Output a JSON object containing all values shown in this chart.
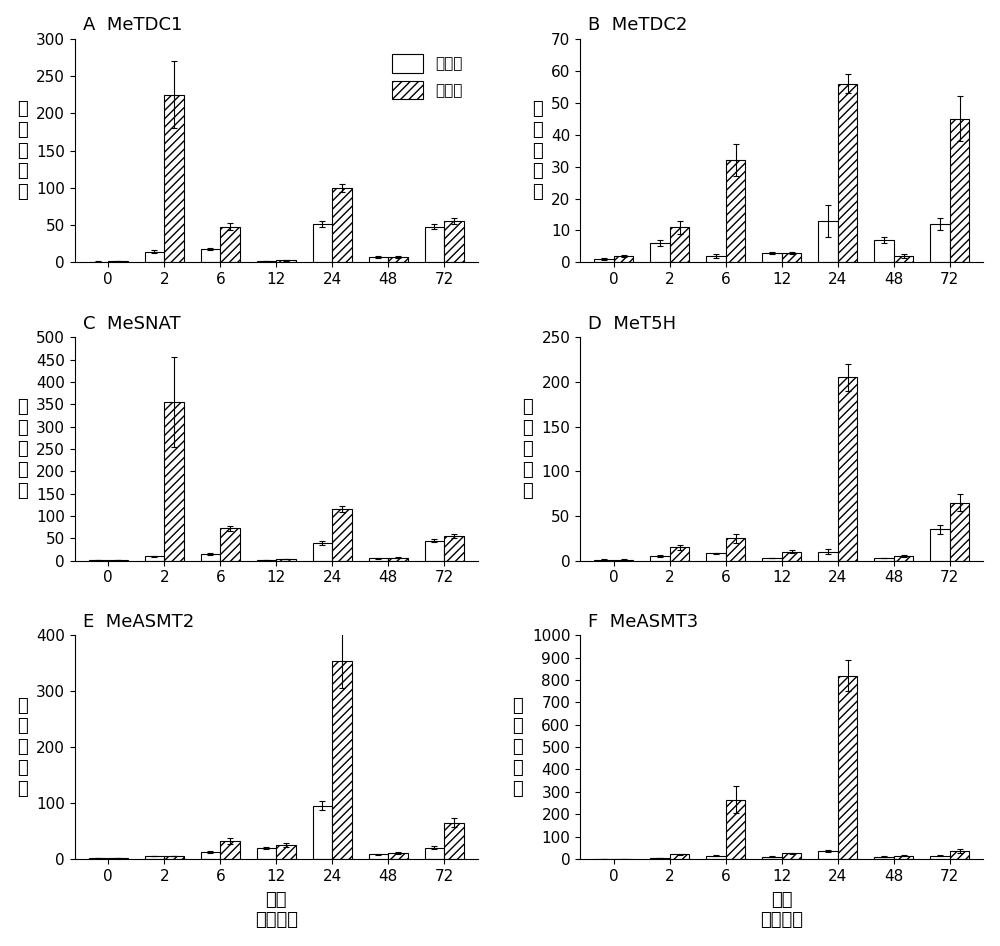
{
  "panels": [
    {
      "label": "A",
      "title": "MeTDC1",
      "ylim": [
        0,
        300
      ],
      "yticks": [
        0,
        50,
        100,
        150,
        200,
        250,
        300
      ],
      "ctrl": [
        1,
        14,
        18,
        2,
        52,
        7,
        48
      ],
      "treat": [
        2,
        225,
        48,
        3,
        100,
        7,
        55
      ],
      "ctrl_err": [
        0.5,
        2,
        2,
        0.5,
        4,
        1,
        3
      ],
      "treat_err": [
        0.5,
        45,
        5,
        0.5,
        5,
        1,
        4
      ]
    },
    {
      "label": "B",
      "title": "MeTDC2",
      "ylim": [
        0,
        70
      ],
      "yticks": [
        0,
        10,
        20,
        30,
        40,
        50,
        60,
        70
      ],
      "ctrl": [
        1,
        6,
        2,
        3,
        13,
        7,
        12
      ],
      "treat": [
        2,
        11,
        32,
        3,
        56,
        2,
        45
      ],
      "ctrl_err": [
        0.3,
        1,
        0.5,
        0.3,
        5,
        1,
        2
      ],
      "treat_err": [
        0.3,
        2,
        5,
        0.3,
        3,
        0.5,
        7
      ]
    },
    {
      "label": "C",
      "title": "MeSNAT",
      "ylim": [
        0,
        500
      ],
      "yticks": [
        0,
        50,
        100,
        150,
        200,
        250,
        300,
        350,
        400,
        450,
        500
      ],
      "ctrl": [
        1,
        10,
        15,
        2,
        40,
        5,
        45
      ],
      "treat": [
        1,
        355,
        72,
        3,
        115,
        7,
        55
      ],
      "ctrl_err": [
        0.3,
        1,
        2,
        0.3,
        5,
        1,
        3
      ],
      "treat_err": [
        0.3,
        100,
        5,
        0.3,
        7,
        1,
        4
      ]
    },
    {
      "label": "D",
      "title": "MeT5H",
      "ylim": [
        0,
        250
      ],
      "yticks": [
        0,
        50,
        100,
        150,
        200,
        250
      ],
      "ctrl": [
        1,
        5,
        8,
        3,
        10,
        3,
        35
      ],
      "treat": [
        1,
        15,
        25,
        10,
        205,
        5,
        65
      ],
      "ctrl_err": [
        0.3,
        1,
        1,
        0.5,
        3,
        0.5,
        5
      ],
      "treat_err": [
        0.3,
        3,
        5,
        2,
        15,
        1,
        10
      ]
    },
    {
      "label": "E",
      "title": "MeASMT2",
      "ylim": [
        0,
        400
      ],
      "yticks": [
        0,
        100,
        200,
        300,
        400
      ],
      "ctrl": [
        1,
        5,
        12,
        20,
        95,
        8,
        20
      ],
      "treat": [
        1,
        5,
        32,
        25,
        355,
        10,
        65
      ],
      "ctrl_err": [
        0.3,
        0.5,
        2,
        2,
        8,
        1,
        3
      ],
      "treat_err": [
        0.3,
        0.5,
        5,
        3,
        50,
        2,
        8
      ]
    },
    {
      "label": "F",
      "title": "MeASMT3",
      "ylim": [
        0,
        1000
      ],
      "yticks": [
        0,
        100,
        200,
        300,
        400,
        500,
        600,
        700,
        800,
        900,
        1000
      ],
      "ctrl": [
        1,
        5,
        15,
        10,
        35,
        10,
        15
      ],
      "treat": [
        1,
        20,
        265,
        25,
        820,
        15,
        35
      ],
      "ctrl_err": [
        0.3,
        0.5,
        3,
        1,
        5,
        1,
        3
      ],
      "treat_err": [
        0.3,
        3,
        60,
        3,
        70,
        2,
        8
      ]
    }
  ],
  "timepoints": [
    "0",
    "2",
    "6",
    "12",
    "24",
    "48",
    "72"
  ],
  "xlabel_line1": "时间",
  "xlabel_line2": "（小时）",
  "ylabel_chars": [
    "相",
    "对",
    "表",
    "达",
    "量"
  ],
  "ctrl_label": "对照组",
  "treat_label": "处理组",
  "ctrl_color": "#ffffff",
  "hatch_pattern": "////",
  "bar_width": 0.35,
  "bar_edgecolor": "#000000",
  "figsize": [
    10.0,
    9.46
  ],
  "dpi": 100
}
